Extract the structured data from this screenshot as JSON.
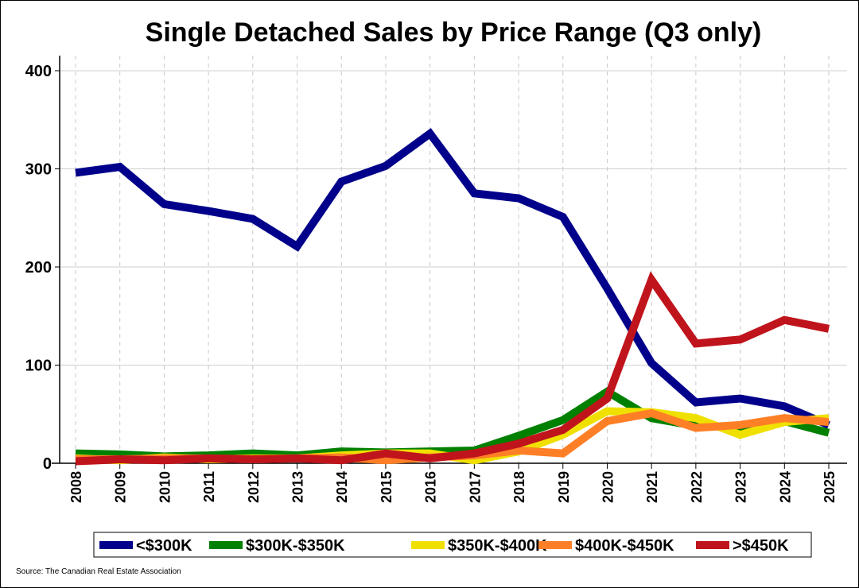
{
  "chart_data": {
    "type": "line",
    "title": "Single Detached Sales by Price Range (Q3 only)",
    "xlabel": "",
    "ylabel": "",
    "source": "Source: The Canadian Real Estate Association",
    "ylim": [
      0,
      400
    ],
    "yticks": [
      0,
      100,
      200,
      300,
      400
    ],
    "grid": true,
    "legend": "bottom",
    "x": [
      2008,
      2009,
      2010,
      2011,
      2012,
      2013,
      2014,
      2015,
      2016,
      2017,
      2018,
      2019,
      2020,
      2021,
      2022,
      2023,
      2024,
      2025
    ],
    "series": [
      {
        "name": "<$300K",
        "color": "#00008B",
        "values": [
          296,
          302,
          264,
          257,
          249,
          221,
          287,
          303,
          336,
          275,
          270,
          251,
          178,
          102,
          62,
          66,
          58,
          39
        ]
      },
      {
        "name": "$300K-$350K",
        "color": "#008000",
        "values": [
          10,
          9,
          7,
          8,
          10,
          8,
          12,
          11,
          12,
          13,
          28,
          44,
          73,
          46,
          38,
          37,
          43,
          31
        ]
      },
      {
        "name": "$350K-$400K",
        "color": "#F0E000",
        "values": [
          5,
          3,
          6,
          4,
          5,
          5,
          8,
          10,
          10,
          3,
          12,
          29,
          53,
          52,
          46,
          29,
          42,
          46
        ]
      },
      {
        "name": "$400K-$450K",
        "color": "#FF7F27",
        "values": [
          4,
          4,
          5,
          5,
          4,
          5,
          6,
          3,
          6,
          8,
          13,
          10,
          43,
          51,
          36,
          39,
          46,
          42
        ]
      },
      {
        "name": ">$450K",
        "color": "#C0141C",
        "values": [
          2,
          4,
          3,
          5,
          4,
          5,
          3,
          10,
          5,
          10,
          20,
          34,
          66,
          187,
          122,
          126,
          146,
          137
        ]
      }
    ]
  }
}
